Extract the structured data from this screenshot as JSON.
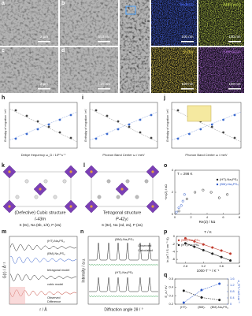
{
  "figure": {
    "panel_letters": [
      "a",
      "b",
      "c",
      "d",
      "h",
      "i",
      "j",
      "k",
      "l",
      "m",
      "n",
      "o",
      "p",
      "q"
    ],
    "sem": {
      "scale_bars": [
        "2 µm",
        "500 nm",
        "2 µm",
        "0.25 nm"
      ]
    },
    "eds": [
      {
        "element": "Sodium",
        "scale": "100 nm"
      },
      {
        "element": "Antimony",
        "scale": "100 nm"
      },
      {
        "element": "Sulfur",
        "scale": "100 nm"
      },
      {
        "element": "Selenium",
        "scale": "100 nm"
      }
    ],
    "h": {
      "xlabel": "Debye frequency ω_D / 10¹³ s⁻¹",
      "ylabel": "Enthalpy of migration / eV"
    },
    "i": {
      "xlabel": "Phonon Band Center ω / meV",
      "ylabel": "Enthalpy of migration / eV"
    },
    "j": {
      "xlabel": "Phonon Band Center ω / meV",
      "ylabel": "Enthalpy of migration / eV"
    },
    "k": {
      "title": "(Defective) Cubic structure",
      "space_group": "I-43m",
      "sites": "S (8c), Na (6b, 1/3), P (2a)"
    },
    "l": {
      "title": "Tetragonal structure",
      "space_group": "P-42₁c",
      "sites": "S (8e), Na (4d, 2a), P (2a)"
    },
    "m": {
      "xlabel": "r / Å",
      "ylabel": "G(r) / Å⁻²",
      "labels": [
        "(HT)-Na₃PS₄",
        "(BM)-Na₃PS₄",
        "tetragonal model",
        "cubic model",
        "Observed",
        "Difference"
      ]
    },
    "n": {
      "xlabel": "Diffraction angle 2θ / °",
      "ylabel": "Intensity / a.u.",
      "labels": [
        "(BM)-Na₃PS₄",
        "(HT)-Na₃PS₄",
        "Observed",
        "Calculated"
      ]
    }
  },
  "chart_data": [
    {
      "type": "scatter",
      "title": "T = 298 K",
      "xlabel": "Re(Z) / kΩ",
      "ylabel": "−Im(Z) / kΩ",
      "xlim": [
        0,
        8
      ],
      "ylim": [
        0,
        4
      ],
      "xticks": [
        0,
        2,
        4,
        6,
        8
      ],
      "yticks": [
        0,
        2,
        4
      ],
      "series": [
        {
          "name": "(HT)-Na₃PS₄",
          "color": "#222222",
          "x": [
            0.5,
            1.5,
            2.5,
            3.5,
            4.5,
            5.5,
            6.5
          ],
          "values": [
            0.3,
            1.4,
            2.0,
            2.2,
            2.0,
            1.5,
            1.8
          ]
        },
        {
          "name": "(BM)-Na₃PS₄",
          "color": "#2b57c9",
          "x": [
            0.2,
            0.5,
            0.8,
            1.0,
            1.2
          ],
          "values": [
            0.2,
            0.6,
            0.8,
            1.2,
            1.8
          ]
        }
      ]
    },
    {
      "type": "line",
      "title": "T / K",
      "xlabel": "1000·T⁻¹ / K⁻¹",
      "ylabel": "ln (σT / S cm⁻¹ K)",
      "xlim": [
        2.6,
        4.0
      ],
      "ylim": [
        -7,
        0
      ],
      "xticks": [
        2.8,
        3.2,
        3.6,
        4.0
      ],
      "yticks": [
        -6,
        -4,
        -2,
        0
      ],
      "series": [
        {
          "name": "(BM)-Na₃PS₄",
          "color": "#c0392b",
          "x": [
            2.8,
            3.0,
            3.2,
            3.4,
            3.6,
            3.8
          ],
          "values": [
            -0.5,
            -1.3,
            -2.1,
            -2.9,
            -3.7,
            -4.5
          ]
        },
        {
          "name": "(HT)-Na₃PS₄",
          "color": "#222222",
          "x": [
            2.8,
            3.0,
            3.2,
            3.4,
            3.6,
            3.8
          ],
          "values": [
            -1.8,
            -2.7,
            -3.6,
            -4.5,
            -5.4,
            -6.3
          ]
        }
      ]
    },
    {
      "type": "category",
      "ylabel": "E_a / eV",
      "y2label": "σ_RT / mS cm⁻¹",
      "categories": [
        "(HT)-",
        "(BM)-",
        "(BM)-Na₃PS₄"
      ],
      "ylim": [
        0.2,
        0.5
      ],
      "yticks": [
        0.2,
        0.3,
        0.4,
        0.5
      ],
      "y2lim": [
        0,
        1.6
      ],
      "y2ticks": [
        0,
        0.4,
        0.8,
        1.2,
        1.6
      ],
      "series": [
        {
          "color": "#222222",
          "values": [
            0.36,
            0.28,
            0.25
          ]
        },
        {
          "color": "#2b57c9",
          "axis": "y2",
          "values": [
            0.1,
            0.9,
            1.3
          ]
        }
      ]
    }
  ]
}
